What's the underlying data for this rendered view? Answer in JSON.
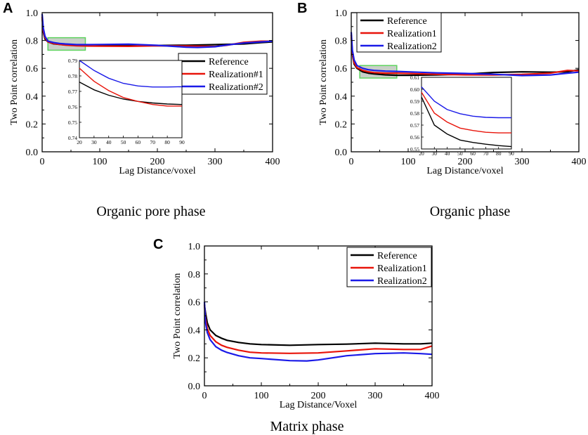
{
  "figure": {
    "panels": [
      {
        "letter": "A",
        "caption": "Organic pore phase"
      },
      {
        "letter": "B",
        "caption": "Organic phase"
      },
      {
        "letter": "C",
        "caption": "Matrix phase"
      }
    ]
  },
  "colors": {
    "reference": "#000000",
    "realization1": "#e8140a",
    "realization2": "#1a1ae8",
    "highlight": "#5fd35f"
  },
  "chart_data": [
    {
      "type": "line",
      "panel": "A",
      "caption": "Organic pore phase",
      "xlabel": "Lag Distance/voxel",
      "ylabel": "Two Point correlation",
      "xlim": [
        0,
        400
      ],
      "ylim": [
        0,
        1.0
      ],
      "xticks": [
        0,
        100,
        200,
        300,
        400
      ],
      "yticks": [
        0.0,
        0.2,
        0.4,
        0.6,
        0.8,
        1.0
      ],
      "xtick_labels": [
        "0",
        "100",
        "200",
        "300",
        "400"
      ],
      "ytick_labels": [
        "0.0",
        "0.2",
        "0.4",
        "0.6",
        "0.8",
        "1.0"
      ],
      "legend": {
        "position": "center-right",
        "entries": [
          "Reference",
          "Realization#1",
          "Realization#2"
        ]
      },
      "highlight_range": {
        "x": [
          10,
          75
        ],
        "y": [
          0.73,
          0.82
        ]
      },
      "series": [
        {
          "name": "Reference",
          "color": "#000000",
          "x": [
            0,
            2,
            5,
            10,
            20,
            30,
            40,
            60,
            80,
            100,
            150,
            200,
            250,
            300,
            320,
            350,
            380,
            400
          ],
          "y": [
            0.97,
            0.86,
            0.81,
            0.79,
            0.776,
            0.772,
            0.768,
            0.765,
            0.764,
            0.763,
            0.763,
            0.764,
            0.766,
            0.77,
            0.772,
            0.775,
            0.785,
            0.79
          ]
        },
        {
          "name": "Realization#1",
          "color": "#e8140a",
          "x": [
            0,
            2,
            5,
            10,
            20,
            30,
            40,
            60,
            80,
            100,
            150,
            200,
            250,
            300,
            320,
            350,
            380,
            400
          ],
          "y": [
            0.97,
            0.87,
            0.82,
            0.79,
            0.778,
            0.772,
            0.767,
            0.762,
            0.76,
            0.759,
            0.758,
            0.762,
            0.76,
            0.757,
            0.765,
            0.787,
            0.795,
            0.795
          ]
        },
        {
          "name": "Realization#2",
          "color": "#1a1ae8",
          "x": [
            0,
            2,
            5,
            10,
            20,
            30,
            40,
            60,
            80,
            100,
            150,
            200,
            250,
            270,
            300,
            320,
            350,
            380,
            400
          ],
          "y": [
            0.99,
            0.89,
            0.83,
            0.795,
            0.785,
            0.779,
            0.775,
            0.77,
            0.77,
            0.771,
            0.773,
            0.765,
            0.752,
            0.75,
            0.755,
            0.767,
            0.782,
            0.79,
            0.795
          ]
        }
      ],
      "inset": {
        "xlim": [
          20,
          90
        ],
        "ylim": [
          0.74,
          0.79
        ],
        "xticks": [
          20,
          30,
          40,
          50,
          60,
          70,
          80,
          90
        ],
        "yticks": [
          0.74,
          0.75,
          0.76,
          0.77,
          0.78,
          0.79
        ],
        "xtick_labels": [
          "20",
          "30",
          "40",
          "50",
          "60",
          "70",
          "80",
          "90"
        ],
        "ytick_labels": [
          "0.74",
          "0.75",
          "0.76",
          "0.77",
          "0.78",
          "0.79"
        ],
        "series": [
          {
            "name": "Reference",
            "x": [
              20,
              30,
              40,
              50,
              60,
              70,
              80,
              90
            ],
            "y": [
              0.776,
              0.771,
              0.7675,
              0.765,
              0.7635,
              0.7625,
              0.7618,
              0.7615
            ]
          },
          {
            "name": "Realization#1",
            "x": [
              20,
              30,
              40,
              50,
              60,
              70,
              80,
              90
            ],
            "y": [
              0.785,
              0.7765,
              0.7705,
              0.766,
              0.7635,
              0.7615,
              0.7605,
              0.7605
            ]
          },
          {
            "name": "Realization#2",
            "x": [
              20,
              30,
              40,
              50,
              60,
              70,
              80,
              90
            ],
            "y": [
              0.79,
              0.7835,
              0.7785,
              0.7752,
              0.7735,
              0.7728,
              0.7728,
              0.773
            ]
          }
        ]
      }
    },
    {
      "type": "line",
      "panel": "B",
      "caption": "Organic phase",
      "xlabel": "Lag Distance/voxel",
      "ylabel": "Two Point correlation",
      "xlim": [
        0,
        400
      ],
      "ylim": [
        0,
        1.0
      ],
      "xticks": [
        0,
        100,
        200,
        300,
        400
      ],
      "yticks": [
        0.0,
        0.2,
        0.4,
        0.6,
        0.8,
        1.0
      ],
      "xtick_labels": [
        "0",
        "100",
        "200",
        "300",
        "400"
      ],
      "ytick_labels": [
        "0.0",
        "0.2",
        "0.4",
        "0.6",
        "0.8",
        "1.0"
      ],
      "legend": {
        "position": "top-left",
        "entries": [
          "Reference",
          "Realization1",
          "Realization2"
        ]
      },
      "highlight_range": {
        "x": [
          15,
          80
        ],
        "y": [
          0.53,
          0.62
        ]
      },
      "series": [
        {
          "name": "Reference",
          "color": "#000000",
          "x": [
            0,
            2,
            5,
            10,
            20,
            30,
            40,
            60,
            80,
            100,
            150,
            200,
            250,
            300,
            350,
            380,
            400
          ],
          "y": [
            0.84,
            0.7,
            0.63,
            0.6,
            0.575,
            0.565,
            0.56,
            0.553,
            0.55,
            0.55,
            0.552,
            0.558,
            0.57,
            0.575,
            0.572,
            0.575,
            0.59
          ]
        },
        {
          "name": "Realization1",
          "color": "#e8140a",
          "x": [
            0,
            2,
            5,
            10,
            20,
            30,
            40,
            60,
            80,
            100,
            150,
            200,
            250,
            300,
            350,
            380,
            400
          ],
          "y": [
            0.84,
            0.71,
            0.64,
            0.605,
            0.585,
            0.575,
            0.569,
            0.565,
            0.565,
            0.563,
            0.557,
            0.553,
            0.552,
            0.556,
            0.565,
            0.585,
            0.582
          ]
        },
        {
          "name": "Realization2",
          "color": "#1a1ae8",
          "x": [
            0,
            2,
            5,
            10,
            20,
            30,
            40,
            60,
            80,
            100,
            150,
            200,
            250,
            300,
            350,
            380,
            400
          ],
          "y": [
            0.86,
            0.73,
            0.66,
            0.62,
            0.6,
            0.59,
            0.585,
            0.58,
            0.578,
            0.575,
            0.567,
            0.563,
            0.557,
            0.548,
            0.552,
            0.565,
            0.572
          ]
        }
      ],
      "inset": {
        "xlim": [
          20,
          90
        ],
        "ylim": [
          0.55,
          0.61
        ],
        "xticks": [
          20,
          30,
          40,
          50,
          60,
          70,
          80,
          90
        ],
        "yticks": [
          0.55,
          0.56,
          0.57,
          0.58,
          0.59,
          0.6,
          0.61
        ],
        "xtick_labels": [
          "20",
          "30",
          "40",
          "50",
          "60",
          "70",
          "80",
          "90"
        ],
        "ytick_labels": [
          "0.55",
          "0.56",
          "0.57",
          "0.58",
          "0.59",
          "0.60",
          "0.61"
        ],
        "series": [
          {
            "name": "Reference",
            "x": [
              20,
              30,
              40,
              50,
              60,
              70,
              80,
              90
            ],
            "y": [
              0.5935,
              0.57,
              0.5625,
              0.5575,
              0.5555,
              0.554,
              0.5528,
              0.552
            ]
          },
          {
            "name": "Realization1",
            "x": [
              20,
              30,
              40,
              50,
              60,
              70,
              80,
              90
            ],
            "y": [
              0.5975,
              0.58,
              0.5725,
              0.5675,
              0.5655,
              0.564,
              0.5635,
              0.5635
            ]
          },
          {
            "name": "Realization2",
            "x": [
              20,
              30,
              40,
              50,
              60,
              70,
              80,
              90
            ],
            "y": [
              0.602,
              0.59,
              0.583,
              0.5795,
              0.5775,
              0.5765,
              0.5762,
              0.5762
            ]
          }
        ]
      }
    },
    {
      "type": "line",
      "panel": "C",
      "caption": "Matrix phase",
      "xlabel": "Lag Distance/Voxel",
      "ylabel": "Two Point correlation",
      "xlim": [
        0,
        400
      ],
      "ylim": [
        0,
        1.0
      ],
      "xticks": [
        0,
        100,
        200,
        300,
        400
      ],
      "yticks": [
        0.0,
        0.2,
        0.4,
        0.6,
        0.8,
        1.0
      ],
      "xtick_labels": [
        "0",
        "100",
        "200",
        "300",
        "400"
      ],
      "ytick_labels": [
        "0.0",
        "0.2",
        "0.4",
        "0.6",
        "0.8",
        "1.0"
      ],
      "legend": {
        "position": "top-right",
        "entries": [
          "Reference",
          "Realization1",
          "Realization2"
        ]
      },
      "series": [
        {
          "name": "Reference",
          "color": "#000000",
          "x": [
            0,
            2,
            5,
            10,
            20,
            30,
            40,
            60,
            80,
            100,
            150,
            200,
            250,
            300,
            350,
            380,
            400
          ],
          "y": [
            0.58,
            0.52,
            0.45,
            0.4,
            0.36,
            0.34,
            0.325,
            0.31,
            0.3,
            0.295,
            0.29,
            0.295,
            0.298,
            0.305,
            0.3,
            0.3,
            0.305
          ]
        },
        {
          "name": "Realization1",
          "color": "#e8140a",
          "x": [
            0,
            2,
            5,
            10,
            20,
            30,
            40,
            60,
            80,
            100,
            150,
            200,
            250,
            300,
            350,
            380,
            400
          ],
          "y": [
            0.58,
            0.48,
            0.41,
            0.36,
            0.315,
            0.29,
            0.275,
            0.255,
            0.24,
            0.235,
            0.232,
            0.235,
            0.25,
            0.265,
            0.26,
            0.26,
            0.285
          ]
        },
        {
          "name": "Realization2",
          "color": "#1a1ae8",
          "x": [
            0,
            2,
            5,
            10,
            20,
            30,
            40,
            60,
            80,
            100,
            150,
            180,
            200,
            250,
            300,
            350,
            380,
            400
          ],
          "y": [
            0.6,
            0.45,
            0.38,
            0.33,
            0.28,
            0.255,
            0.238,
            0.215,
            0.2,
            0.195,
            0.18,
            0.178,
            0.185,
            0.215,
            0.23,
            0.235,
            0.23,
            0.225
          ]
        }
      ]
    }
  ]
}
